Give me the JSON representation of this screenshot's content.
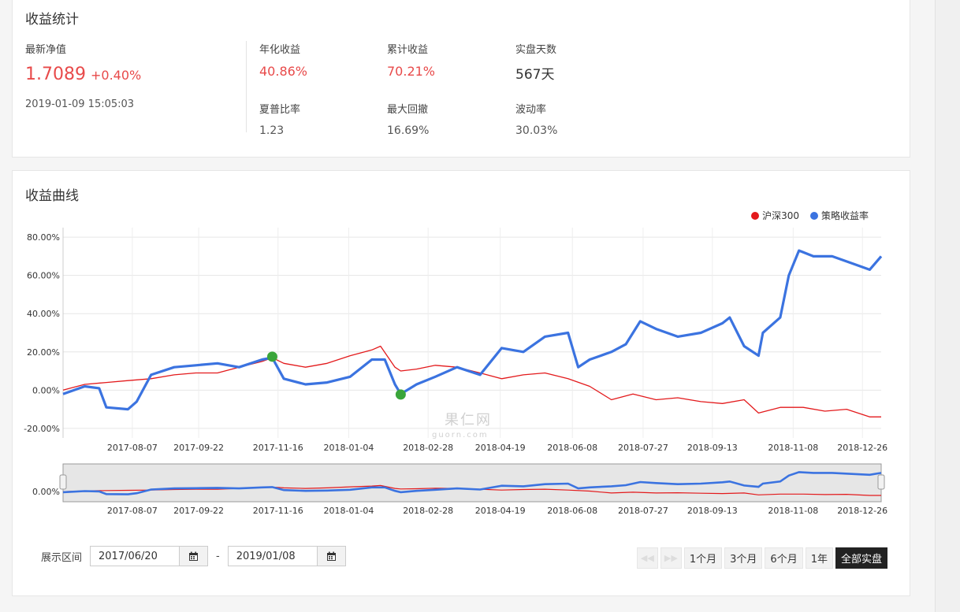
{
  "stats": {
    "title": "收益统计",
    "nav_label": "最新净值",
    "nav_value": "1.7089",
    "nav_change": "+0.40%",
    "nav_time": "2019-01-09 15:05:03",
    "annual_label": "年化收益",
    "annual_value": "40.86%",
    "cumulative_label": "累计收益",
    "cumulative_value": "70.21%",
    "days_label": "实盘天数",
    "days_value": "567天",
    "sharpe_label": "夏普比率",
    "sharpe_value": "1.23",
    "drawdown_label": "最大回撤",
    "drawdown_value": "16.69%",
    "volatility_label": "波动率",
    "volatility_value": "30.03%"
  },
  "chart_panel": {
    "title": "收益曲线",
    "watermark": "果仁网",
    "watermark_sub": "guorn.com"
  },
  "range": {
    "label": "展示区间",
    "start": "2017/06/20",
    "separator": "-",
    "end": "2019/01/08",
    "buttons": [
      "1个月",
      "3个月",
      "6个月",
      "1年",
      "全部实盘"
    ],
    "active": "全部实盘"
  },
  "colors": {
    "benchmark": "#e31a1c",
    "strategy": "#3b73e0",
    "marker": "#3aa53a",
    "accent": "#e84a4a"
  },
  "chart_data": {
    "type": "line",
    "x_tick_labels": [
      "2017-08-07",
      "2017-09-22",
      "2017-11-16",
      "2018-01-04",
      "2018-02-28",
      "2018-04-19",
      "2018-06-08",
      "2018-07-27",
      "2018-09-13",
      "2018-11-08",
      "2018-12-26"
    ],
    "y_tick_labels": [
      "80.00%",
      "60.00%",
      "40.00%",
      "20.00%",
      "0.00%",
      "-20.00%"
    ],
    "ylim": [
      -25,
      85
    ],
    "y_ticks": [
      80,
      60,
      40,
      20,
      0,
      -20
    ],
    "x_range": [
      "2017-06-20",
      "2019-01-08"
    ],
    "grid": true,
    "legend_position": "top-right",
    "series": [
      {
        "name": "沪深300",
        "color": "#e31a1c",
        "x": [
          "2017-06-20",
          "2017-07-05",
          "2017-07-20",
          "2017-08-04",
          "2017-08-20",
          "2017-09-05",
          "2017-09-20",
          "2017-10-05",
          "2017-10-20",
          "2017-11-05",
          "2017-11-12",
          "2017-11-20",
          "2017-12-05",
          "2017-12-20",
          "2018-01-05",
          "2018-01-20",
          "2018-01-26",
          "2018-02-05",
          "2018-02-09",
          "2018-02-20",
          "2018-03-05",
          "2018-03-20",
          "2018-04-05",
          "2018-04-20",
          "2018-05-05",
          "2018-05-20",
          "2018-06-05",
          "2018-06-20",
          "2018-07-05",
          "2018-07-20",
          "2018-08-05",
          "2018-08-20",
          "2018-09-05",
          "2018-09-20",
          "2018-10-05",
          "2018-10-15",
          "2018-10-30",
          "2018-11-15",
          "2018-11-30",
          "2018-12-15",
          "2018-12-31",
          "2019-01-08"
        ],
        "y": [
          0,
          3,
          4,
          5,
          6,
          8,
          9,
          9,
          12,
          15,
          17,
          14,
          12,
          14,
          18,
          21,
          23,
          12,
          10,
          11,
          13,
          12,
          9,
          6,
          8,
          9,
          6,
          2,
          -5,
          -2,
          -5,
          -4,
          -6,
          -7,
          -5,
          -12,
          -9,
          -9,
          -11,
          -10,
          -14,
          -14
        ]
      },
      {
        "name": "策略收益率",
        "color": "#3b73e0",
        "x": [
          "2017-06-20",
          "2017-07-05",
          "2017-07-15",
          "2017-07-20",
          "2017-08-04",
          "2017-08-10",
          "2017-08-20",
          "2017-09-05",
          "2017-09-20",
          "2017-10-05",
          "2017-10-20",
          "2017-11-05",
          "2017-11-12",
          "2017-11-20",
          "2017-12-05",
          "2017-12-20",
          "2018-01-05",
          "2018-01-20",
          "2018-01-29",
          "2018-02-05",
          "2018-02-09",
          "2018-02-20",
          "2018-03-05",
          "2018-03-20",
          "2018-04-05",
          "2018-04-20",
          "2018-05-05",
          "2018-05-20",
          "2018-06-05",
          "2018-06-12",
          "2018-06-20",
          "2018-07-05",
          "2018-07-15",
          "2018-07-25",
          "2018-08-05",
          "2018-08-20",
          "2018-09-05",
          "2018-09-20",
          "2018-09-25",
          "2018-10-05",
          "2018-10-15",
          "2018-10-18",
          "2018-10-30",
          "2018-11-05",
          "2018-11-12",
          "2018-11-22",
          "2018-12-05",
          "2018-12-20",
          "2018-12-31",
          "2019-01-08"
        ],
        "y": [
          -2,
          2,
          1,
          -9,
          -10,
          -6,
          8,
          12,
          13,
          14,
          12,
          16,
          17,
          6,
          3,
          4,
          7,
          16,
          16,
          3,
          -2,
          3,
          7,
          12,
          8,
          22,
          20,
          28,
          30,
          12,
          16,
          20,
          24,
          36,
          32,
          28,
          30,
          35,
          38,
          23,
          18,
          30,
          38,
          60,
          73,
          70,
          70,
          66,
          63,
          70
        ]
      }
    ],
    "markers": [
      {
        "x": "2017-11-12",
        "y": 17.5
      },
      {
        "x": "2018-02-09",
        "y": -2.3
      }
    ],
    "navigator": {
      "y_tick_labels": [
        "0.00%"
      ],
      "x_tick_labels": [
        "2017-08-07",
        "2017-09-22",
        "2017-11-16",
        "2018-01-04",
        "2018-02-28",
        "2018-04-19",
        "2018-06-08",
        "2018-07-27",
        "2018-09-13",
        "2018-11-08",
        "2018-12-26"
      ]
    }
  }
}
